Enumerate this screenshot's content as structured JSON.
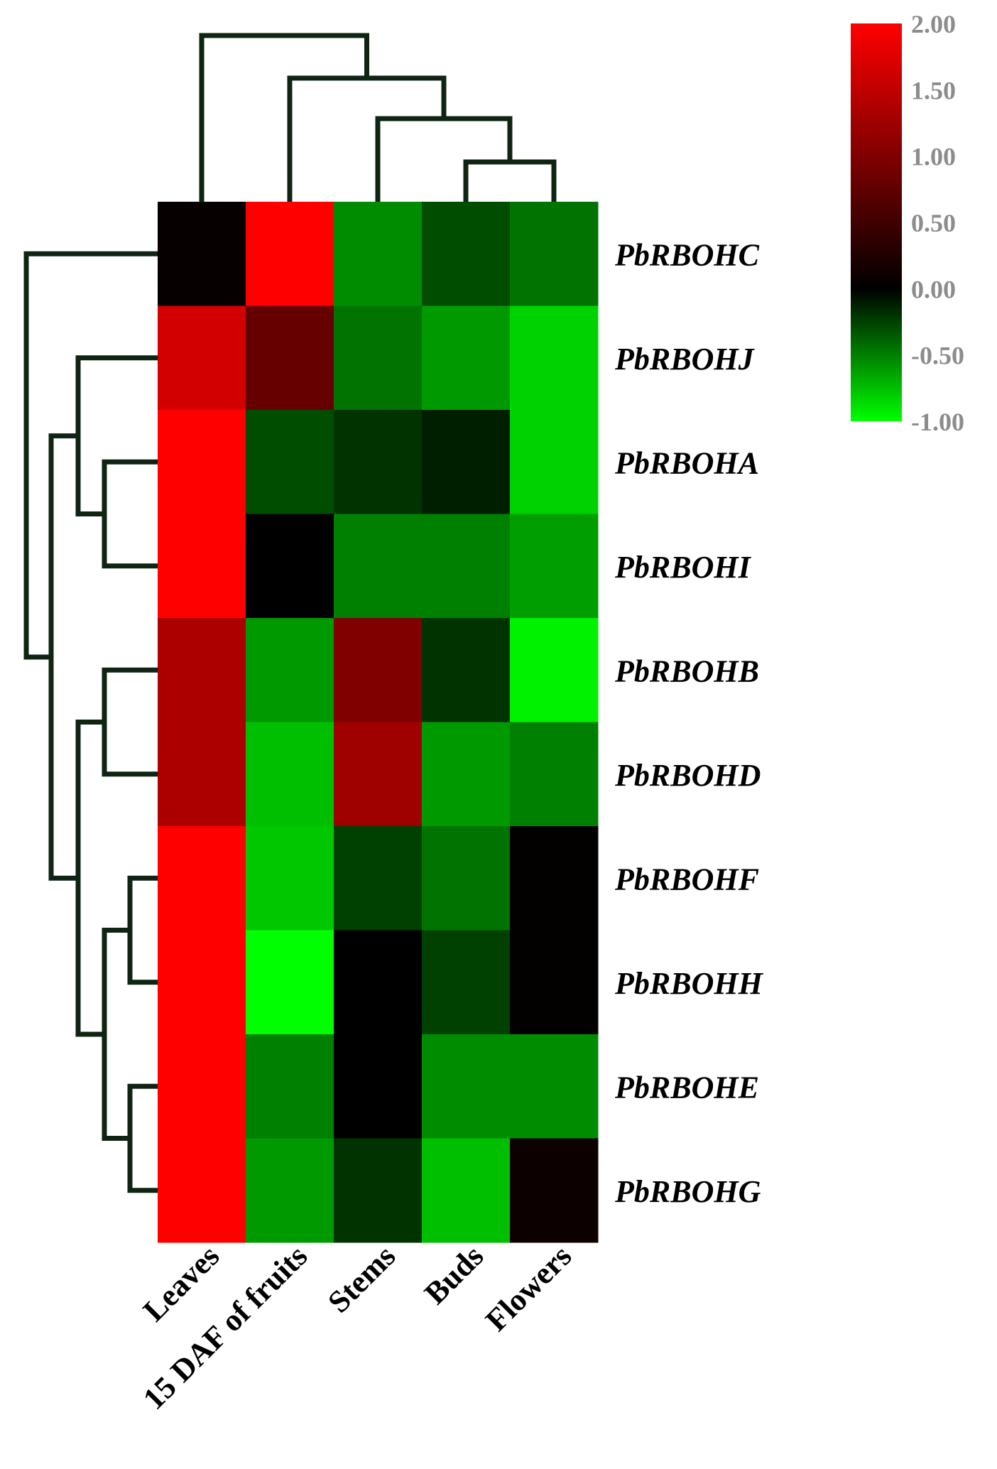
{
  "chart_data": {
    "type": "heatmap",
    "columns": [
      "Leaves",
      "15 DAF of fruits",
      "Stems",
      "Buds",
      "Flowers"
    ],
    "rows": [
      "PbRBOHC",
      "PbRBOHJ",
      "PbRBOHA",
      "PbRBOHI",
      "PbRBOHB",
      "PbRBOHD",
      "PbRBOHF",
      "PbRBOHH",
      "PbRBOHE",
      "PbRBOHG"
    ],
    "values": [
      [
        0.05,
        2.0,
        -0.55,
        -0.3,
        -0.45
      ],
      [
        1.65,
        0.8,
        -0.45,
        -0.6,
        -0.82
      ],
      [
        2.0,
        -0.3,
        -0.2,
        -0.12,
        -0.82
      ],
      [
        2.0,
        0.0,
        -0.5,
        -0.5,
        -0.62
      ],
      [
        1.35,
        -0.6,
        1.0,
        -0.2,
        -0.95
      ],
      [
        1.35,
        -0.75,
        1.25,
        -0.6,
        -0.5
      ],
      [
        2.0,
        -0.78,
        -0.25,
        -0.45,
        0.02
      ],
      [
        2.0,
        -1.0,
        0.0,
        -0.25,
        0.02
      ],
      [
        2.0,
        -0.5,
        0.0,
        -0.55,
        -0.55
      ],
      [
        2.0,
        -0.6,
        -0.2,
        -0.75,
        0.1
      ]
    ],
    "color_scale": {
      "min": -1.0,
      "mid": 0.0,
      "max": 2.0,
      "min_color": "#00ff00",
      "mid_color": "#000000",
      "max_color": "#ff0000"
    },
    "legend": {
      "ticks": [
        "2.00",
        "1.50",
        "1.00",
        "0.50",
        "0.00",
        "-0.50",
        "-1.00"
      ],
      "placement": "top-right"
    },
    "row_dendrogram": true,
    "column_dendrogram": true
  }
}
